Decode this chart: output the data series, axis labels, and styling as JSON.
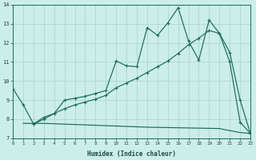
{
  "xlabel": "Humidex (Indice chaleur)",
  "bg_color": "#cceee8",
  "grid_color": "#aad8d2",
  "line_color": "#1a6b5a",
  "xlim": [
    0,
    23
  ],
  "ylim": [
    7,
    14
  ],
  "yticks": [
    7,
    8,
    9,
    10,
    11,
    12,
    13,
    14
  ],
  "xticks": [
    0,
    1,
    2,
    3,
    4,
    5,
    6,
    7,
    8,
    9,
    10,
    11,
    12,
    13,
    14,
    15,
    16,
    17,
    18,
    19,
    20,
    21,
    22,
    23
  ],
  "line1_x": [
    0,
    1,
    2,
    3,
    4,
    5,
    6,
    7,
    8,
    9,
    10,
    11,
    12,
    13,
    14,
    15,
    16,
    17,
    18,
    19,
    20,
    21,
    22,
    23
  ],
  "line1_y": [
    9.6,
    8.75,
    7.75,
    8.1,
    8.3,
    9.0,
    9.1,
    9.2,
    9.35,
    9.5,
    11.05,
    10.8,
    10.75,
    12.8,
    12.4,
    13.05,
    13.85,
    12.1,
    11.1,
    13.2,
    12.5,
    11.0,
    7.85,
    7.25
  ],
  "line2_x": [
    2,
    3,
    4,
    5,
    6,
    7,
    8,
    9,
    10,
    11,
    12,
    13,
    14,
    15,
    16,
    17,
    18,
    19,
    20,
    21,
    22,
    23
  ],
  "line2_y": [
    7.75,
    8.0,
    8.3,
    8.55,
    8.75,
    8.9,
    9.05,
    9.25,
    9.65,
    9.9,
    10.15,
    10.45,
    10.75,
    11.05,
    11.45,
    11.9,
    12.25,
    12.65,
    12.5,
    11.5,
    9.0,
    7.25
  ],
  "line3_x": [
    1,
    2,
    3,
    4,
    5,
    6,
    7,
    8,
    9,
    10,
    11,
    12,
    13,
    14,
    15,
    16,
    17,
    18,
    19,
    20,
    21,
    22,
    23
  ],
  "line3_y": [
    7.78,
    7.78,
    7.78,
    7.76,
    7.74,
    7.72,
    7.7,
    7.68,
    7.66,
    7.64,
    7.62,
    7.6,
    7.58,
    7.57,
    7.56,
    7.55,
    7.54,
    7.53,
    7.52,
    7.51,
    7.4,
    7.3,
    7.25
  ]
}
